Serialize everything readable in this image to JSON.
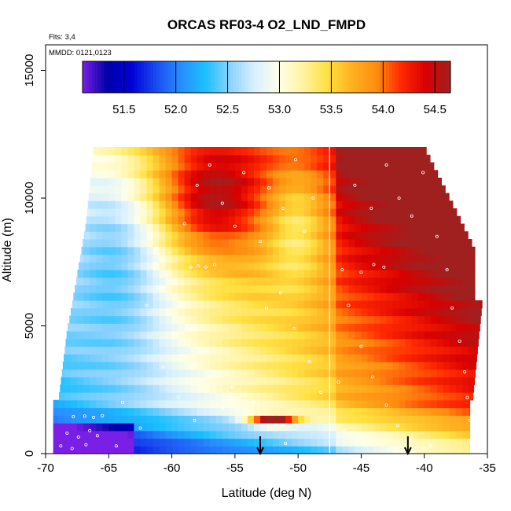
{
  "chart_data": {
    "type": "heatmap",
    "title": "ORCAS RF03-4 O2_LND_FMPD",
    "xlabel": "Latitude (deg N)",
    "ylabel": "Altitude (m)",
    "notes": [
      "Flts: 3,4",
      "MMDD: 0121,0123"
    ],
    "xlim": [
      -70,
      -35
    ],
    "ylim": [
      0,
      16000
    ],
    "x_ticks": [
      -70,
      -65,
      -60,
      -55,
      -50,
      -45,
      -40,
      -35
    ],
    "y_ticks": [
      0,
      5000,
      10000,
      15000
    ],
    "colorbar": {
      "range": [
        51.1,
        54.65
      ],
      "ticks": [
        51.5,
        52.0,
        52.5,
        53.0,
        53.5,
        54.0,
        54.5
      ],
      "colors": [
        "#7a1fe6",
        "#0000a8",
        "#0000d8",
        "#1a4cf0",
        "#2a8cff",
        "#1ac0ff",
        "#8ad2ff",
        "#d8f0ff",
        "#ffffe8",
        "#fff3a0",
        "#ffe040",
        "#ffb020",
        "#ff8c10",
        "#ff2800",
        "#d80000",
        "#a02020"
      ]
    },
    "vertical_line_x": -47.5,
    "arrows_x": [
      -53,
      -41.3
    ],
    "sample_points": [
      {
        "x": -67.8,
        "y": 1450
      },
      {
        "x": -66.9,
        "y": 1470
      },
      {
        "x": -66.2,
        "y": 1420
      },
      {
        "x": -65.5,
        "y": 1480
      },
      {
        "x": -68.3,
        "y": 800
      },
      {
        "x": -67.4,
        "y": 650
      },
      {
        "x": -66.5,
        "y": 900
      },
      {
        "x": -65.9,
        "y": 700
      },
      {
        "x": -68.8,
        "y": 300
      },
      {
        "x": -67.9,
        "y": 200
      },
      {
        "x": -66.8,
        "y": 350
      },
      {
        "x": -64.4,
        "y": 300
      },
      {
        "x": -63.9,
        "y": 2000
      },
      {
        "x": -62.5,
        "y": 1000
      },
      {
        "x": -60.7,
        "y": 3400
      },
      {
        "x": -59.5,
        "y": 2200
      },
      {
        "x": -58.2,
        "y": 1300
      },
      {
        "x": -57.0,
        "y": 3000
      },
      {
        "x": -56.0,
        "y": 1800
      },
      {
        "x": -55.2,
        "y": 2600
      },
      {
        "x": -62.0,
        "y": 5800
      },
      {
        "x": -61.1,
        "y": 6500
      },
      {
        "x": -60.3,
        "y": 7000
      },
      {
        "x": -58.5,
        "y": 7300
      },
      {
        "x": -57.9,
        "y": 7350
      },
      {
        "x": -57.3,
        "y": 7300
      },
      {
        "x": -56.6,
        "y": 7400
      },
      {
        "x": -59.0,
        "y": 9000
      },
      {
        "x": -58.0,
        "y": 10500
      },
      {
        "x": -57.0,
        "y": 11300
      },
      {
        "x": -56.0,
        "y": 9800
      },
      {
        "x": -55.0,
        "y": 8900
      },
      {
        "x": -54.3,
        "y": 11000
      },
      {
        "x": -53.0,
        "y": 8300
      },
      {
        "x": -52.3,
        "y": 10400
      },
      {
        "x": -51.2,
        "y": 9600
      },
      {
        "x": -50.2,
        "y": 11500
      },
      {
        "x": -49.5,
        "y": 8700
      },
      {
        "x": -48.8,
        "y": 10000
      },
      {
        "x": -52.5,
        "y": 5700
      },
      {
        "x": -51.4,
        "y": 6300
      },
      {
        "x": -50.3,
        "y": 4900
      },
      {
        "x": -49.1,
        "y": 3600
      },
      {
        "x": -48.2,
        "y": 2400
      },
      {
        "x": -53.5,
        "y": 2000
      },
      {
        "x": -52.0,
        "y": 1000
      },
      {
        "x": -51.0,
        "y": 400
      },
      {
        "x": -46.5,
        "y": 7200
      },
      {
        "x": -45.0,
        "y": 7100
      },
      {
        "x": -44.0,
        "y": 7400
      },
      {
        "x": -43.2,
        "y": 7300
      },
      {
        "x": -46.0,
        "y": 5800
      },
      {
        "x": -45.0,
        "y": 4200
      },
      {
        "x": -44.1,
        "y": 3000
      },
      {
        "x": -43.0,
        "y": 1900
      },
      {
        "x": -42.1,
        "y": 1100
      },
      {
        "x": -41.0,
        "y": 600
      },
      {
        "x": -40.0,
        "y": 200
      },
      {
        "x": -39.5,
        "y": 300
      },
      {
        "x": -45.5,
        "y": 10500
      },
      {
        "x": -44.2,
        "y": 9600
      },
      {
        "x": -43.0,
        "y": 11300
      },
      {
        "x": -42.0,
        "y": 10000
      },
      {
        "x": -41.0,
        "y": 9300
      },
      {
        "x": -40.1,
        "y": 11000
      },
      {
        "x": -39.0,
        "y": 8500
      },
      {
        "x": -38.2,
        "y": 7200
      },
      {
        "x": -37.8,
        "y": 5700
      },
      {
        "x": -37.2,
        "y": 4400
      },
      {
        "x": -36.8,
        "y": 3200
      },
      {
        "x": -36.6,
        "y": 2200
      },
      {
        "x": -36.4,
        "y": 1300
      },
      {
        "x": -36.5,
        "y": 500
      },
      {
        "x": -46.8,
        "y": 2800
      },
      {
        "x": -46.3,
        "y": 900
      }
    ]
  }
}
